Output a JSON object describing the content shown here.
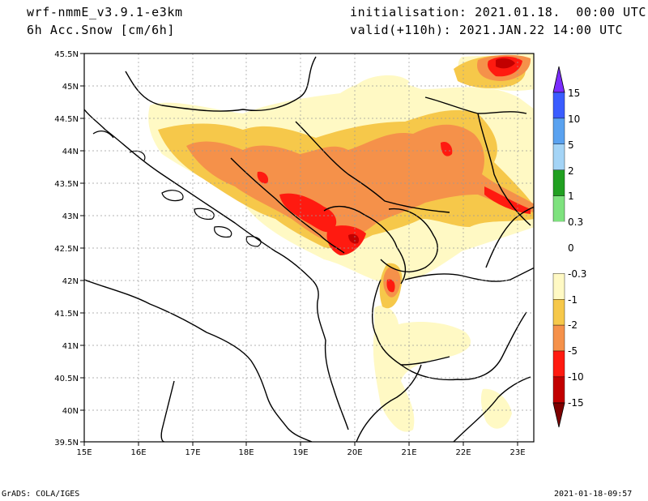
{
  "header": {
    "model": "wrf-nmmE_v3.9.1-e3km",
    "field": "6h Acc.Snow [cm/6h]",
    "initialisation": "initialisation: 2021.01.18.  00:00 UTC",
    "valid": "valid(+110h): 2021.JAN.22 14:00 UTC"
  },
  "footer": {
    "credit": "GrADS: COLA/IGES",
    "timestamp": "2021-01-18-09:57"
  },
  "map": {
    "lon_range": [
      15,
      23.3
    ],
    "lat_range": [
      39.5,
      45.5
    ],
    "lon_ticks": [
      "15E",
      "16E",
      "17E",
      "18E",
      "19E",
      "20E",
      "21E",
      "22E",
      "23E"
    ],
    "lat_ticks": [
      "39.5N",
      "40N",
      "40.5N",
      "41N",
      "41.5N",
      "42N",
      "42.5N",
      "43N",
      "43.5N",
      "44N",
      "44.5N",
      "45N",
      "45.5N"
    ]
  },
  "colorbar": {
    "labels": [
      "15",
      "10",
      "5",
      "2",
      "1",
      "0.3",
      "0",
      "-0.3",
      "-1",
      "-2",
      "-5",
      "-10",
      "-15"
    ],
    "colors": [
      "#7b2cff",
      "#3a5cff",
      "#5aa2f0",
      "#a4d4f6",
      "#21a021",
      "#7ee27e",
      "#ffffff",
      "#ffffff",
      "#fff9c4",
      "#f6c84a",
      "#f5914a",
      "#ff1a10",
      "#c20000",
      "#7e0000"
    ]
  }
}
